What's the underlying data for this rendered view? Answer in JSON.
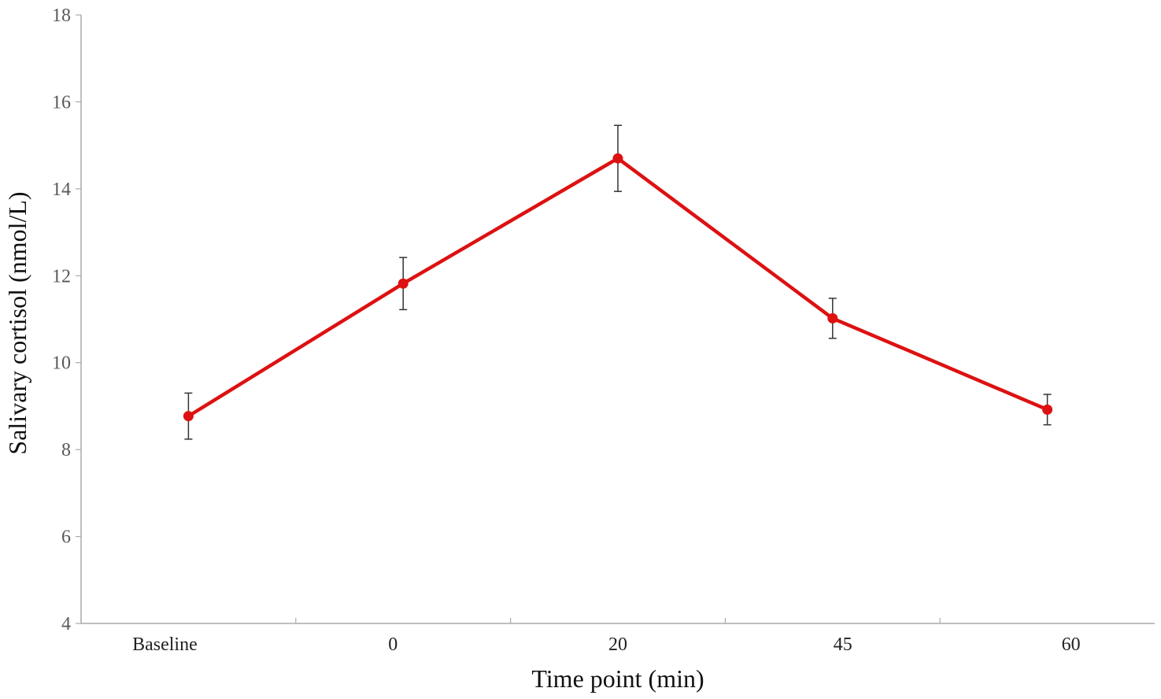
{
  "chart_data": {
    "type": "line",
    "title": "",
    "xlabel": "Time point (min)",
    "ylabel": "Salivary cortisol (nmol/L)",
    "categories": [
      "Baseline",
      "0",
      "20",
      "45",
      "60"
    ],
    "ylim": [
      4,
      18
    ],
    "yticks": [
      4,
      6,
      8,
      10,
      12,
      14,
      16,
      18
    ],
    "grid": false,
    "legend": "none",
    "series": [
      {
        "color": "#dd1111",
        "values": [
          8.77,
          11.82,
          14.7,
          11.02,
          8.92
        ],
        "error": [
          0.53,
          0.6,
          0.76,
          0.46,
          0.35
        ]
      }
    ]
  }
}
